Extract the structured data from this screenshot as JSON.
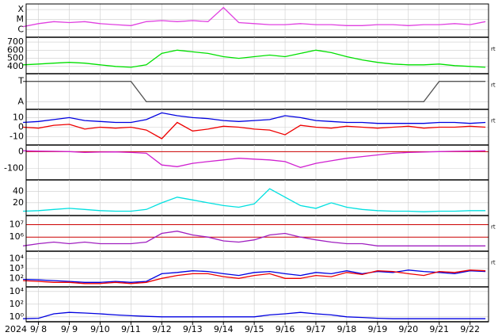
{
  "chart_data": [
    {
      "type": "line",
      "log": false,
      "ylim": [
        0.4,
        3.4
      ],
      "yticks": [
        {
          "value": 1,
          "label": "C"
        },
        {
          "value": 2,
          "label": "M"
        },
        {
          "value": 3,
          "label": "X"
        }
      ],
      "x": [
        7.5,
        8,
        8.5,
        9,
        9.5,
        10,
        10.5,
        11,
        11.5,
        12,
        12.5,
        13,
        13.5,
        14,
        14.5,
        15,
        15.5,
        16,
        16.5,
        17,
        17.5,
        18,
        18.5,
        19,
        19.5,
        20,
        20.5,
        21,
        21.5,
        22,
        22.5
      ],
      "series": [
        {
          "color": "#e040e0",
          "values": [
            1.3,
            1.6,
            1.8,
            1.7,
            1.8,
            1.6,
            1.5,
            1.4,
            1.8,
            1.9,
            1.8,
            1.9,
            1.8,
            3.2,
            1.7,
            1.6,
            1.5,
            1.5,
            1.6,
            1.5,
            1.5,
            1.4,
            1.4,
            1.5,
            1.5,
            1.4,
            1.5,
            1.5,
            1.6,
            1.5,
            1.8
          ]
        }
      ]
    },
    {
      "type": "line",
      "log": false,
      "ylim": [
        330,
        740
      ],
      "yticks": [
        400,
        500,
        600,
        700
      ],
      "side_label": "rt",
      "x": [
        7.5,
        8,
        8.5,
        9,
        9.5,
        10,
        10.5,
        11,
        11.5,
        12,
        12.5,
        13,
        13.5,
        14,
        14.5,
        15,
        15.5,
        16,
        16.5,
        17,
        17.5,
        18,
        18.5,
        19,
        19.5,
        20,
        20.5,
        21,
        21.5,
        22,
        22.5
      ],
      "series": [
        {
          "color": "#00e000",
          "values": [
            420,
            430,
            440,
            450,
            440,
            420,
            400,
            390,
            420,
            560,
            600,
            580,
            560,
            520,
            500,
            520,
            540,
            520,
            560,
            600,
            570,
            520,
            480,
            450,
            430,
            420,
            420,
            430,
            410,
            400,
            390
          ]
        }
      ]
    },
    {
      "type": "line",
      "log": false,
      "ylim": [
        0.7,
        2.3
      ],
      "yticks": [
        {
          "value": 1,
          "label": "A"
        },
        {
          "value": 2,
          "label": "T"
        }
      ],
      "side_label": "rt",
      "x": [
        7.5,
        8,
        8.5,
        9,
        9.5,
        10,
        10.5,
        11,
        11.5,
        12,
        12.5,
        13,
        13.5,
        14,
        14.5,
        15,
        15.5,
        16,
        16.5,
        17,
        17.5,
        18,
        18.5,
        19,
        19.5,
        20,
        20.5,
        21,
        21.5,
        22,
        22.5
      ],
      "series": [
        {
          "color": "#555555",
          "values": [
            2,
            2,
            2,
            2,
            2,
            2,
            2,
            2,
            1,
            1,
            1,
            1,
            1,
            1,
            1,
            1,
            1,
            1,
            1,
            1,
            1,
            1,
            1,
            1,
            1,
            1,
            1,
            2,
            2,
            2,
            2
          ]
        }
      ]
    },
    {
      "type": "line",
      "log": false,
      "ylim": [
        -17,
        17
      ],
      "yticks": [
        -10,
        0,
        10
      ],
      "side_label": "rt",
      "x": [
        7.5,
        8,
        8.5,
        9,
        9.5,
        10,
        10.5,
        11,
        11.5,
        12,
        12.5,
        13,
        13.5,
        14,
        14.5,
        15,
        15.5,
        16,
        16.5,
        17,
        17.5,
        18,
        18.5,
        19,
        19.5,
        20,
        20.5,
        21,
        21.5,
        22,
        22.5
      ],
      "series": [
        {
          "color": "#0000e0",
          "values": [
            5,
            6,
            8,
            10,
            7,
            6,
            5,
            5,
            8,
            15,
            12,
            10,
            9,
            7,
            6,
            7,
            8,
            12,
            10,
            7,
            6,
            5,
            5,
            4,
            4,
            4,
            4,
            5,
            5,
            4,
            5
          ]
        },
        {
          "color": "#ee0000",
          "values": [
            0,
            -1,
            2,
            3,
            -2,
            0,
            -1,
            0,
            -3,
            -12,
            5,
            -4,
            -2,
            1,
            0,
            -2,
            -3,
            -8,
            2,
            0,
            -1,
            1,
            0,
            -1,
            0,
            1,
            -1,
            0,
            0,
            1,
            0
          ]
        }
      ]
    },
    {
      "type": "line",
      "log": false,
      "ylim": [
        -160,
        30
      ],
      "yticks": [
        -100,
        0
      ],
      "hlines": [
        0
      ],
      "hline_color": "#cc0000",
      "x": [
        7.5,
        8,
        8.5,
        9,
        9.5,
        10,
        10.5,
        11,
        11.5,
        12,
        12.5,
        13,
        13.5,
        14,
        14.5,
        15,
        15.5,
        16,
        16.5,
        17,
        17.5,
        18,
        18.5,
        19,
        19.5,
        20,
        20.5,
        21,
        21.5,
        22,
        22.5
      ],
      "series": [
        {
          "color": "#d020d0",
          "values": [
            5,
            3,
            2,
            0,
            -5,
            -3,
            -2,
            -5,
            -10,
            -80,
            -90,
            -70,
            -60,
            -50,
            -40,
            -45,
            -50,
            -60,
            -95,
            -70,
            -55,
            -40,
            -30,
            -20,
            -10,
            -5,
            -3,
            0,
            2,
            3,
            5
          ]
        }
      ]
    },
    {
      "type": "line",
      "log": false,
      "ylim": [
        0,
        58
      ],
      "yticks": [
        20,
        40
      ],
      "x": [
        7.5,
        8,
        8.5,
        9,
        9.5,
        10,
        10.5,
        11,
        11.5,
        12,
        12.5,
        13,
        13.5,
        14,
        14.5,
        15,
        15.5,
        16,
        16.5,
        17,
        17.5,
        18,
        18.5,
        19,
        19.5,
        20,
        20.5,
        21,
        21.5,
        22,
        22.5
      ],
      "series": [
        {
          "color": "#00e0e0",
          "values": [
            5,
            6,
            8,
            10,
            8,
            6,
            5,
            5,
            8,
            20,
            30,
            25,
            20,
            15,
            12,
            18,
            45,
            30,
            15,
            10,
            20,
            12,
            8,
            6,
            5,
            5,
            4,
            5,
            5,
            6,
            6
          ]
        }
      ]
    },
    {
      "type": "line",
      "log": true,
      "ylim": [
        100000,
        40000000
      ],
      "grid_color": "#cc0000",
      "side_label": "rt",
      "yticks": [
        {
          "value": 1000000,
          "label": "10⁶"
        },
        {
          "value": 10000000,
          "label": "10⁷"
        }
      ],
      "x": [
        7.5,
        8,
        8.5,
        9,
        9.5,
        10,
        10.5,
        11,
        11.5,
        12,
        12.5,
        13,
        13.5,
        14,
        14.5,
        15,
        15.5,
        16,
        16.5,
        17,
        17.5,
        18,
        18.5,
        19,
        19.5,
        20,
        20.5,
        21,
        21.5,
        22,
        22.5
      ],
      "series": [
        {
          "color": "#a020c0",
          "values": [
            200000,
            300000,
            400000,
            300000,
            400000,
            300000,
            300000,
            300000,
            400000,
            2000000,
            3000000,
            1500000,
            1000000,
            500000,
            400000,
            600000,
            1500000,
            2000000,
            1000000,
            600000,
            400000,
            300000,
            300000,
            200000,
            200000,
            200000,
            200000,
            200000,
            200000,
            200000,
            200000
          ]
        }
      ]
    },
    {
      "type": "line",
      "log": true,
      "ylim": [
        20,
        40000
      ],
      "side_label": "rt",
      "yticks": [
        {
          "value": 100,
          "label": "10²"
        },
        {
          "value": 1000,
          "label": "10³"
        },
        {
          "value": 10000,
          "label": "10⁴"
        }
      ],
      "x": [
        7.5,
        8,
        8.5,
        9,
        9.5,
        10,
        10.5,
        11,
        11.5,
        12,
        12.5,
        13,
        13.5,
        14,
        14.5,
        15,
        15.5,
        16,
        16.5,
        17,
        17.5,
        18,
        18.5,
        19,
        19.5,
        20,
        20.5,
        21,
        21.5,
        22,
        22.5
      ],
      "series": [
        {
          "color": "#0000e0",
          "values": [
            80,
            70,
            60,
            50,
            40,
            40,
            50,
            40,
            50,
            300,
            400,
            600,
            500,
            300,
            200,
            400,
            500,
            300,
            200,
            400,
            300,
            600,
            300,
            500,
            400,
            700,
            500,
            400,
            300,
            600,
            500
          ]
        },
        {
          "color": "#ee0000",
          "values": [
            60,
            50,
            40,
            40,
            30,
            30,
            40,
            30,
            40,
            100,
            200,
            300,
            300,
            150,
            100,
            200,
            300,
            100,
            100,
            200,
            150,
            400,
            250,
            600,
            500,
            300,
            200,
            500,
            400,
            700,
            600
          ]
        }
      ]
    },
    {
      "type": "line",
      "log": true,
      "ylim": [
        0.3,
        30000
      ],
      "xlim": [
        7.6,
        22.6
      ],
      "xlabel": "2024",
      "yticks": [
        {
          "value": 1,
          "label": "10⁰"
        },
        {
          "value": 100,
          "label": "10²"
        },
        {
          "value": 10000,
          "label": "10⁴"
        }
      ],
      "xticks": [
        {
          "value": 8,
          "label": "9/ 8"
        },
        {
          "value": 9,
          "label": "9/ 9"
        },
        {
          "value": 10,
          "label": "9/10"
        },
        {
          "value": 11,
          "label": "9/11"
        },
        {
          "value": 12,
          "label": "9/12"
        },
        {
          "value": 13,
          "label": "9/13"
        },
        {
          "value": 14,
          "label": "9/14"
        },
        {
          "value": 15,
          "label": "9/15"
        },
        {
          "value": 16,
          "label": "9/16"
        },
        {
          "value": 17,
          "label": "9/17"
        },
        {
          "value": 18,
          "label": "9/18"
        },
        {
          "value": 19,
          "label": "9/19"
        },
        {
          "value": 20,
          "label": "9/20"
        },
        {
          "value": 21,
          "label": "9/21"
        },
        {
          "value": 22,
          "label": "9/22"
        }
      ],
      "x": [
        7.5,
        8,
        8.5,
        9,
        9.5,
        10,
        10.5,
        11,
        11.5,
        12,
        12.5,
        13,
        13.5,
        14,
        14.5,
        15,
        15.5,
        16,
        16.5,
        17,
        17.5,
        18,
        18.5,
        19,
        19.5,
        20,
        20.5,
        21,
        21.5,
        22,
        22.5
      ],
      "series": [
        {
          "color": "#0000e0",
          "values": [
            0.5,
            0.6,
            3,
            5,
            4,
            3,
            2,
            1.5,
            1.2,
            1,
            1,
            1,
            1,
            1,
            1,
            1,
            2,
            3,
            5,
            3,
            2,
            1,
            0.8,
            0.6,
            0.5,
            0.5,
            0.5,
            0.5,
            0.5,
            0.5,
            0.5
          ]
        }
      ]
    }
  ]
}
